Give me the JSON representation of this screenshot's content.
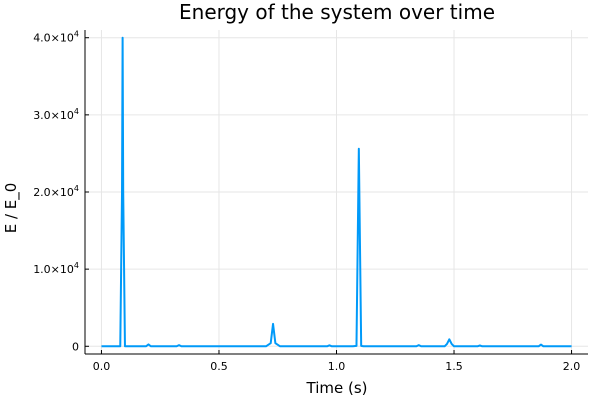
{
  "chart_data": {
    "type": "line",
    "title": "Energy of the system over time",
    "xlabel": "Time (s)",
    "ylabel": "E / E_0",
    "xlim": [
      -0.07,
      2.07
    ],
    "ylim": [
      -1000,
      41000
    ],
    "grid": true,
    "legend": "none",
    "x_ticks": [
      {
        "value": 0.0,
        "label": "0.0"
      },
      {
        "value": 0.5,
        "label": "0.5"
      },
      {
        "value": 1.0,
        "label": "1.0"
      },
      {
        "value": 1.5,
        "label": "1.5"
      },
      {
        "value": 2.0,
        "label": "2.0"
      }
    ],
    "y_ticks": [
      {
        "value": 0,
        "mantissa": "0",
        "exponent": ""
      },
      {
        "value": 10000,
        "mantissa": "1.0×10",
        "exponent": "4"
      },
      {
        "value": 20000,
        "mantissa": "2.0×10",
        "exponent": "4"
      },
      {
        "value": 30000,
        "mantissa": "3.0×10",
        "exponent": "4"
      },
      {
        "value": 40000,
        "mantissa": "4.0×10",
        "exponent": "4"
      }
    ],
    "series": [
      {
        "color": "#009af9",
        "x": [
          0.0,
          0.08,
          0.0875,
          0.09,
          0.0925,
          0.1,
          0.19,
          0.2,
          0.21,
          0.32,
          0.33,
          0.34,
          0.7,
          0.72,
          0.73,
          0.74,
          0.76,
          0.96,
          0.97,
          0.98,
          1.07,
          1.085,
          1.095,
          1.105,
          1.115,
          1.34,
          1.35,
          1.36,
          1.46,
          1.47,
          1.48,
          1.49,
          1.5,
          1.6,
          1.61,
          1.62,
          1.86,
          1.87,
          1.88,
          2.0
        ],
        "y": [
          1,
          5,
          20000,
          40000,
          20000,
          5,
          1,
          250,
          1,
          1,
          150,
          1,
          1,
          400,
          2900,
          400,
          1,
          1,
          120,
          1,
          1,
          50,
          25600,
          50,
          1,
          1,
          150,
          1,
          1,
          300,
          900,
          300,
          1,
          1,
          100,
          1,
          1,
          220,
          1,
          1
        ]
      }
    ]
  }
}
